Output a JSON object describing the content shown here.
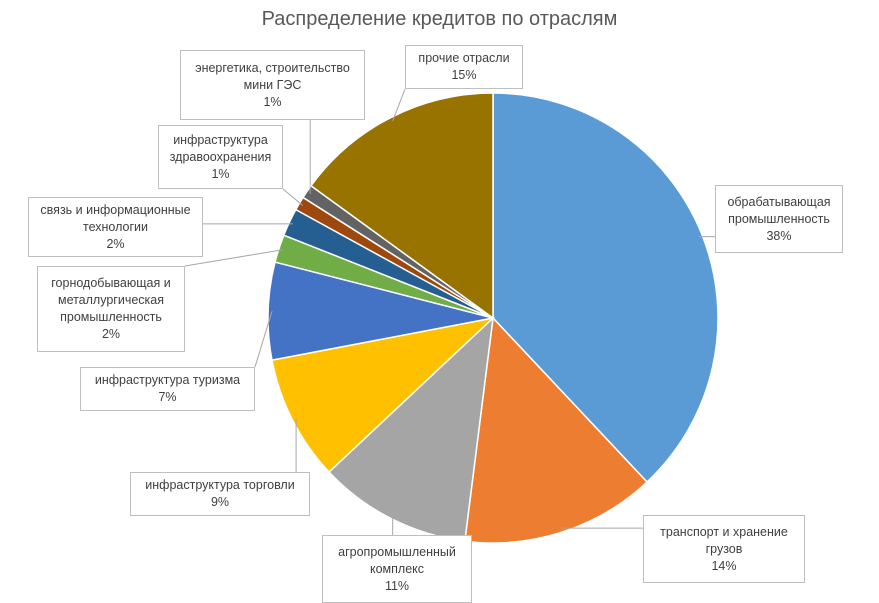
{
  "chart_data": {
    "type": "pie",
    "title": "Распределение кредитов по отраслям",
    "categories": [
      "обрабатывающая промышленность",
      "транспорт и хранение грузов",
      "агропромышленный комплекс",
      "инфраструктура торговли",
      "инфраструктура туризма",
      "горнодобывающая и металлургическая промышленность",
      "связь и информационные технологии",
      "инфраструктура здравоохранения",
      "энергетика, строительство мини ГЭС",
      "прочие отрасли"
    ],
    "values": [
      38,
      14,
      11,
      9,
      7,
      2,
      2,
      1,
      1,
      15
    ],
    "value_labels": [
      "38%",
      "14%",
      "11%",
      "9%",
      "7%",
      "2%",
      "2%",
      "1%",
      "1%",
      "15%"
    ],
    "colors": [
      "#5b9bd5",
      "#ed7d31",
      "#a5a5a5",
      "#ffc000",
      "#4472c4",
      "#70ad47",
      "#255e91",
      "#9e480e",
      "#636363",
      "#997300"
    ]
  }
}
